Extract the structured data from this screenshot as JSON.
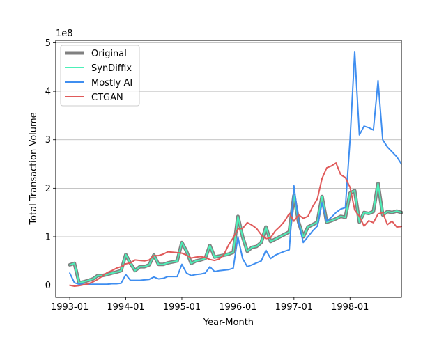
{
  "chart_data": {
    "type": "line",
    "xlabel": "Year-Month",
    "ylabel": "Total Transaction Volume",
    "y_offset_label": "1e8",
    "xlim": [
      "1992-10",
      "1998-12"
    ],
    "ylim": [
      -0.25,
      5.05
    ],
    "grid": "horizontal",
    "legend_position": "top-left",
    "x_ticks": [
      {
        "value": "1993-01",
        "label": "1993-01"
      },
      {
        "value": "1994-01",
        "label": "1994-01"
      },
      {
        "value": "1995-01",
        "label": "1995-01"
      },
      {
        "value": "1996-01",
        "label": "1996-01"
      },
      {
        "value": "1997-01",
        "label": "1997-01"
      },
      {
        "value": "1998-01",
        "label": "1998-01"
      }
    ],
    "y_ticks": [
      {
        "value": 0,
        "label": "0"
      },
      {
        "value": 1,
        "label": "1"
      },
      {
        "value": 2,
        "label": "2"
      },
      {
        "value": 3,
        "label": "3"
      },
      {
        "value": 4,
        "label": "4"
      },
      {
        "value": 5,
        "label": "5"
      }
    ],
    "x": [
      "1993-01",
      "1993-02",
      "1993-03",
      "1993-04",
      "1993-05",
      "1993-06",
      "1993-07",
      "1993-08",
      "1993-09",
      "1993-10",
      "1993-11",
      "1993-12",
      "1994-01",
      "1994-02",
      "1994-03",
      "1994-04",
      "1994-05",
      "1994-06",
      "1994-07",
      "1994-08",
      "1994-09",
      "1994-10",
      "1994-11",
      "1994-12",
      "1995-01",
      "1995-02",
      "1995-03",
      "1995-04",
      "1995-05",
      "1995-06",
      "1995-07",
      "1995-08",
      "1995-09",
      "1995-10",
      "1995-11",
      "1995-12",
      "1996-01",
      "1996-02",
      "1996-03",
      "1996-04",
      "1996-05",
      "1996-06",
      "1996-07",
      "1996-08",
      "1996-09",
      "1996-10",
      "1996-11",
      "1996-12",
      "1997-01",
      "1997-02",
      "1997-03",
      "1997-04",
      "1997-05",
      "1997-06",
      "1997-07",
      "1997-08",
      "1997-09",
      "1997-10",
      "1997-11",
      "1997-12",
      "1998-01",
      "1998-02",
      "1998-03",
      "1998-04",
      "1998-05",
      "1998-06",
      "1998-07",
      "1998-08",
      "1998-09",
      "1998-10",
      "1998-11",
      "1998-12"
    ],
    "series": [
      {
        "name": "Original",
        "color": "#808080",
        "width": 5,
        "values": [
          0.42,
          0.45,
          0.05,
          0.07,
          0.1,
          0.13,
          0.2,
          0.2,
          0.22,
          0.25,
          0.27,
          0.3,
          0.63,
          0.45,
          0.3,
          0.38,
          0.38,
          0.42,
          0.62,
          0.43,
          0.43,
          0.46,
          0.48,
          0.5,
          0.88,
          0.7,
          0.45,
          0.5,
          0.52,
          0.55,
          0.82,
          0.58,
          0.6,
          0.62,
          0.64,
          0.68,
          1.42,
          1.0,
          0.7,
          0.78,
          0.8,
          0.88,
          1.2,
          0.9,
          0.95,
          1.0,
          1.05,
          1.1,
          1.85,
          1.3,
          1.0,
          1.2,
          1.25,
          1.3,
          1.83,
          1.3,
          1.33,
          1.37,
          1.42,
          1.4,
          1.9,
          1.95,
          1.3,
          1.5,
          1.48,
          1.52,
          2.1,
          1.45,
          1.52,
          1.5,
          1.53,
          1.5
        ]
      },
      {
        "name": "SynDiffix",
        "color": "#4cf0b8",
        "width": 2,
        "values": [
          0.42,
          0.45,
          0.05,
          0.07,
          0.1,
          0.13,
          0.2,
          0.2,
          0.22,
          0.25,
          0.27,
          0.3,
          0.63,
          0.45,
          0.3,
          0.38,
          0.38,
          0.42,
          0.62,
          0.43,
          0.43,
          0.46,
          0.48,
          0.5,
          0.88,
          0.7,
          0.45,
          0.5,
          0.52,
          0.55,
          0.82,
          0.58,
          0.6,
          0.62,
          0.64,
          0.68,
          1.42,
          1.0,
          0.7,
          0.78,
          0.8,
          0.88,
          1.2,
          0.9,
          0.95,
          1.0,
          1.05,
          1.1,
          1.85,
          1.3,
          1.0,
          1.2,
          1.25,
          1.3,
          1.83,
          1.3,
          1.33,
          1.37,
          1.42,
          1.4,
          1.9,
          1.95,
          1.3,
          1.5,
          1.48,
          1.52,
          2.1,
          1.45,
          1.52,
          1.5,
          1.53,
          1.5
        ]
      },
      {
        "name": "Mostly AI",
        "color": "#3f8ef0",
        "width": 2,
        "values": [
          0.25,
          0.05,
          0.02,
          0.02,
          0.02,
          0.02,
          0.02,
          0.02,
          0.02,
          0.03,
          0.03,
          0.04,
          0.22,
          0.1,
          0.1,
          0.1,
          0.11,
          0.12,
          0.17,
          0.13,
          0.14,
          0.18,
          0.18,
          0.18,
          0.43,
          0.25,
          0.2,
          0.22,
          0.23,
          0.25,
          0.38,
          0.28,
          0.3,
          0.31,
          0.32,
          0.35,
          1.0,
          0.55,
          0.38,
          0.42,
          0.46,
          0.5,
          0.72,
          0.55,
          0.62,
          0.66,
          0.7,
          0.73,
          2.05,
          1.3,
          0.88,
          1.0,
          1.12,
          1.22,
          1.7,
          1.32,
          1.4,
          1.5,
          1.57,
          1.6,
          3.0,
          4.82,
          3.1,
          3.28,
          3.25,
          3.2,
          4.22,
          3.0,
          2.85,
          2.75,
          2.65,
          2.5
        ]
      },
      {
        "name": "CTGAN",
        "color": "#e05a5a",
        "width": 2,
        "values": [
          0.0,
          -0.02,
          -0.01,
          0.01,
          0.03,
          0.07,
          0.12,
          0.19,
          0.26,
          0.3,
          0.35,
          0.38,
          0.44,
          0.46,
          0.52,
          0.51,
          0.5,
          0.52,
          0.61,
          0.61,
          0.64,
          0.69,
          0.68,
          0.67,
          0.66,
          0.62,
          0.56,
          0.58,
          0.59,
          0.57,
          0.53,
          0.51,
          0.54,
          0.63,
          0.83,
          0.98,
          1.16,
          1.17,
          1.29,
          1.24,
          1.17,
          1.04,
          0.96,
          0.98,
          1.12,
          1.21,
          1.32,
          1.48,
          1.32,
          1.45,
          1.38,
          1.42,
          1.62,
          1.78,
          2.2,
          2.42,
          2.46,
          2.52,
          2.28,
          2.22,
          2.02,
          1.55,
          1.42,
          1.22,
          1.33,
          1.29,
          1.47,
          1.5,
          1.25,
          1.32,
          1.2,
          1.21
        ]
      }
    ],
    "legend": [
      {
        "label": "Original",
        "color": "#808080"
      },
      {
        "label": "SynDiffix",
        "color": "#4cf0b8"
      },
      {
        "label": "Mostly AI",
        "color": "#3f8ef0"
      },
      {
        "label": "CTGAN",
        "color": "#e05a5a"
      }
    ]
  }
}
